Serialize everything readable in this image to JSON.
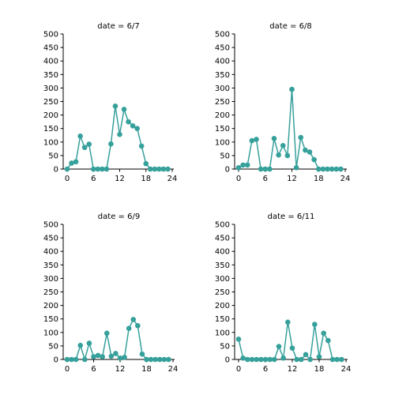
{
  "chart_data": {
    "type": "line",
    "facet_variable": "date",
    "line_color": "#36a09b",
    "marker": "circle",
    "xlim": [
      0,
      24
    ],
    "ylim": [
      0,
      500
    ],
    "xticks": [
      0,
      6,
      12,
      18,
      24
    ],
    "yticks": [
      0,
      50,
      100,
      150,
      200,
      250,
      300,
      350,
      400,
      450,
      500
    ],
    "panels": [
      {
        "title": "date = 6/7",
        "x": [
          0,
          1,
          2,
          3,
          4,
          5,
          6,
          7,
          8,
          9,
          10,
          11,
          12,
          13,
          14,
          15,
          16,
          17,
          18,
          19,
          20,
          21,
          22,
          23
        ],
        "y": [
          0,
          22,
          27,
          122,
          80,
          92,
          0,
          0,
          0,
          0,
          93,
          233,
          128,
          221,
          175,
          160,
          150,
          85,
          20,
          0,
          0,
          0,
          0,
          0
        ]
      },
      {
        "title": "date = 6/8",
        "x": [
          0,
          1,
          2,
          3,
          4,
          5,
          6,
          7,
          8,
          9,
          10,
          11,
          12,
          13,
          14,
          15,
          16,
          17,
          18,
          19,
          20,
          21,
          22,
          23
        ],
        "y": [
          5,
          15,
          15,
          105,
          110,
          0,
          0,
          0,
          113,
          52,
          87,
          50,
          295,
          5,
          117,
          70,
          63,
          35,
          0,
          0,
          0,
          0,
          0,
          0
        ]
      },
      {
        "title": "date = 6/9",
        "x": [
          0,
          1,
          2,
          3,
          4,
          5,
          6,
          7,
          8,
          9,
          10,
          11,
          12,
          13,
          14,
          15,
          16,
          17,
          18,
          19,
          20,
          21,
          22,
          23
        ],
        "y": [
          0,
          0,
          0,
          52,
          0,
          60,
          10,
          15,
          10,
          97,
          12,
          22,
          5,
          8,
          115,
          148,
          125,
          20,
          0,
          0,
          0,
          0,
          0,
          0
        ]
      },
      {
        "title": "date = 6/11",
        "x": [
          0,
          1,
          2,
          3,
          4,
          5,
          6,
          7,
          8,
          9,
          10,
          11,
          12,
          13,
          14,
          15,
          16,
          17,
          18,
          19,
          20,
          21,
          22,
          23
        ],
        "y": [
          75,
          5,
          0,
          0,
          0,
          0,
          0,
          0,
          0,
          48,
          5,
          138,
          42,
          0,
          0,
          18,
          0,
          130,
          10,
          97,
          70,
          0,
          0,
          0
        ]
      }
    ]
  }
}
